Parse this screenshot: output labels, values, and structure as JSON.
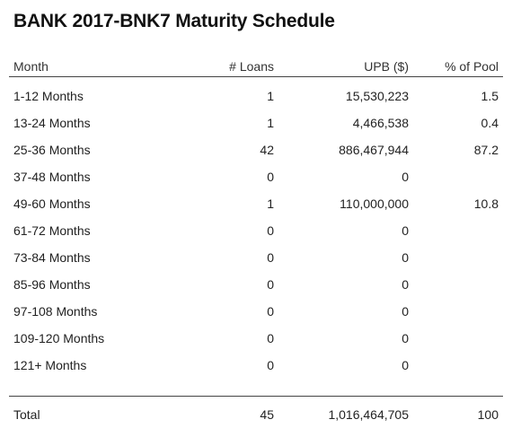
{
  "title": "BANK 2017-BNK7 Maturity Schedule",
  "columns": {
    "month": "Month",
    "loans": "# Loans",
    "upb": "UPB ($)",
    "pool": "% of Pool"
  },
  "rows": [
    {
      "month": "1-12 Months",
      "loans": "1",
      "upb": "15,530,223",
      "pool": "1.5"
    },
    {
      "month": "13-24 Months",
      "loans": "1",
      "upb": "4,466,538",
      "pool": "0.4"
    },
    {
      "month": "25-36 Months",
      "loans": "42",
      "upb": "886,467,944",
      "pool": "87.2"
    },
    {
      "month": "37-48 Months",
      "loans": "0",
      "upb": "0",
      "pool": ""
    },
    {
      "month": "49-60 Months",
      "loans": "1",
      "upb": "110,000,000",
      "pool": "10.8"
    },
    {
      "month": "61-72 Months",
      "loans": "0",
      "upb": "0",
      "pool": ""
    },
    {
      "month": "73-84 Months",
      "loans": "0",
      "upb": "0",
      "pool": ""
    },
    {
      "month": "85-96 Months",
      "loans": "0",
      "upb": "0",
      "pool": ""
    },
    {
      "month": "97-108 Months",
      "loans": "0",
      "upb": "0",
      "pool": ""
    },
    {
      "month": "109-120 Months",
      "loans": "0",
      "upb": "0",
      "pool": ""
    },
    {
      "month": "121+ Months",
      "loans": "0",
      "upb": "0",
      "pool": ""
    }
  ],
  "total": {
    "month": "Total",
    "loans": "45",
    "upb": "1,016,464,705",
    "pool": "100"
  }
}
